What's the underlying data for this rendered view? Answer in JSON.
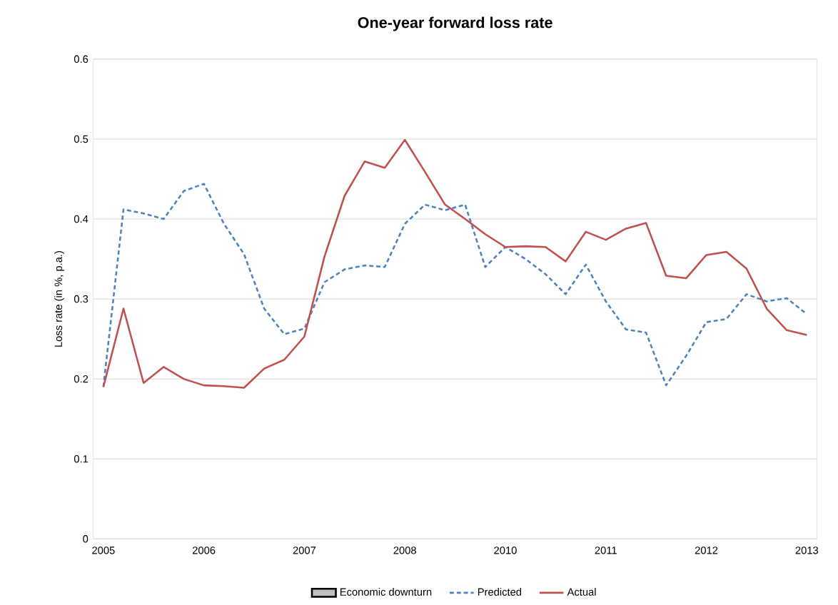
{
  "chart_data": {
    "type": "line",
    "title": "One-year forward loss rate",
    "ylabel": "Loss rate (in %, p.a.)",
    "categories": [
      "2005",
      null,
      null,
      null,
      null,
      "2006",
      null,
      null,
      null,
      null,
      "2007",
      null,
      null,
      null,
      null,
      "2008",
      null,
      null,
      null,
      null,
      "2010",
      null,
      null,
      null,
      null,
      "2011",
      null,
      null,
      null,
      null,
      "2012",
      null,
      null,
      null,
      null,
      "2013"
    ],
    "ylim": [
      0,
      0.6
    ],
    "yticks": [
      0,
      0.1,
      0.2,
      0.3,
      0.4,
      0.5,
      0.6
    ],
    "grid": "y",
    "legend": "bottom",
    "series": [
      {
        "name": "Economic downturn",
        "type": "bar",
        "color": "#bfbfbf",
        "values": [
          null,
          null,
          null,
          null,
          null,
          null,
          null,
          null,
          null,
          null,
          null,
          null,
          null,
          null,
          null,
          null,
          null,
          null,
          null,
          null,
          null,
          null,
          null,
          null,
          null,
          null,
          null,
          null,
          null,
          null,
          null,
          null,
          null,
          null,
          null,
          null
        ]
      },
      {
        "name": "Predicted",
        "color": "#4f81bd",
        "line_style": "dashed",
        "values": [
          0.19,
          0.412,
          0.407,
          0.4,
          0.435,
          0.444,
          0.394,
          0.356,
          0.288,
          0.256,
          0.263,
          0.321,
          0.337,
          0.342,
          0.34,
          0.394,
          0.418,
          0.411,
          0.418,
          0.34,
          0.365,
          0.35,
          0.331,
          0.306,
          0.343,
          0.297,
          0.262,
          0.258,
          0.192,
          0.229,
          0.271,
          0.275,
          0.306,
          0.297,
          0.301,
          0.281
        ]
      },
      {
        "name": "Actual",
        "color": "#c0504d",
        "line_style": "solid",
        "values": [
          0.19,
          0.288,
          0.195,
          0.215,
          0.2,
          0.192,
          0.191,
          0.189,
          0.213,
          0.224,
          0.253,
          0.353,
          0.429,
          0.472,
          0.464,
          0.499,
          0.459,
          0.418,
          0.4,
          0.381,
          0.365,
          0.366,
          0.365,
          0.347,
          0.384,
          0.374,
          0.388,
          0.395,
          0.329,
          0.326,
          0.355,
          0.359,
          0.338,
          0.288,
          0.261,
          0.255
        ]
      }
    ]
  }
}
